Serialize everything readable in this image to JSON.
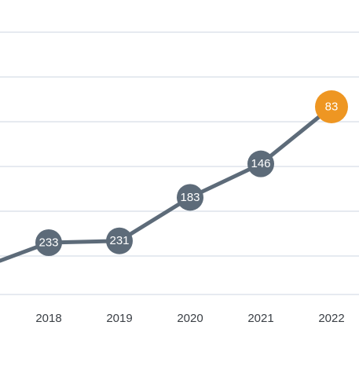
{
  "chart_data": {
    "type": "line",
    "title": "",
    "xlabel": "",
    "ylabel": "",
    "grid": true,
    "reversed_y": true,
    "categories": [
      "2018",
      "2019",
      "2020",
      "2021",
      "2022"
    ],
    "series": [
      {
        "values": [
          233,
          231,
          183,
          146,
          83
        ],
        "labels": [
          "233",
          "231",
          "183",
          "146",
          "83"
        ],
        "color": "#5d6b79",
        "highlight_color": "#ee9622",
        "highlight_index": 4
      }
    ]
  }
}
